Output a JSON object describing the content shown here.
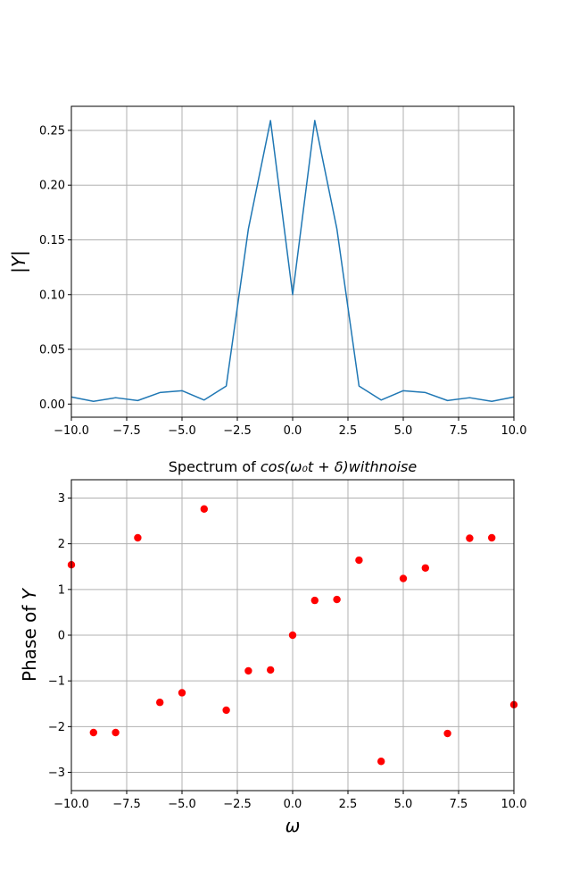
{
  "chart_data": [
    {
      "type": "line",
      "title": "",
      "xlabel": "",
      "ylabel": "|Y|",
      "xlim": [
        -10,
        10
      ],
      "ylim": [
        -0.012,
        0.272
      ],
      "grid": true,
      "color": "#1f77b4",
      "x_ticks": [
        -10,
        -7.5,
        -5,
        -2.5,
        0,
        2.5,
        5,
        7.5,
        10
      ],
      "x_tick_labels": [
        "−10.0",
        "−7.5",
        "−5.0",
        "−2.5",
        "0.0",
        "2.5",
        "5.0",
        "7.5",
        "10.0"
      ],
      "y_ticks": [
        0,
        0.05,
        0.1,
        0.15,
        0.2,
        0.25
      ],
      "y_tick_labels": [
        "0.00",
        "0.05",
        "0.10",
        "0.15",
        "0.20",
        "0.25"
      ],
      "x": [
        -10,
        -9,
        -8,
        -7,
        -6,
        -5,
        -4,
        -3,
        -2,
        -1,
        0,
        1,
        2,
        3,
        4,
        5,
        6,
        7,
        8,
        9,
        10
      ],
      "y": [
        0.0065,
        0.0025,
        0.0058,
        0.0032,
        0.0105,
        0.0122,
        0.0037,
        0.0165,
        0.16,
        0.259,
        0.1,
        0.259,
        0.16,
        0.0165,
        0.0037,
        0.0122,
        0.0105,
        0.0032,
        0.0058,
        0.0025,
        0.0065
      ]
    },
    {
      "type": "scatter",
      "title_prefix": "Spectrum of ",
      "title_math": "cos(ω₀t + δ)withnoise",
      "xlabel": "ω",
      "ylabel_text": "Phase of ",
      "ylabel_var": "Y",
      "xlim": [
        -10,
        10
      ],
      "ylim": [
        -3.4,
        3.4
      ],
      "grid": true,
      "color": "#ff0000",
      "x_ticks": [
        -10,
        -7.5,
        -5,
        -2.5,
        0,
        2.5,
        5,
        7.5,
        10
      ],
      "x_tick_labels": [
        "−10.0",
        "−7.5",
        "−5.0",
        "−2.5",
        "0.0",
        "2.5",
        "5.0",
        "7.5",
        "10.0"
      ],
      "y_ticks": [
        -3,
        -2,
        -1,
        0,
        1,
        2,
        3
      ],
      "y_tick_labels": [
        "−3",
        "−2",
        "−1",
        "0",
        "1",
        "2",
        "3"
      ],
      "x": [
        -10,
        -9,
        -8,
        -7,
        -6,
        -5,
        -4,
        -3,
        -2,
        -1,
        0,
        1,
        2,
        3,
        4,
        5,
        6,
        7,
        8,
        9,
        10
      ],
      "y": [
        1.54,
        -2.13,
        -2.13,
        2.13,
        -1.47,
        -1.26,
        2.76,
        -1.64,
        -0.78,
        -0.76,
        0.0,
        0.76,
        0.78,
        1.64,
        -2.76,
        1.24,
        1.47,
        -2.15,
        2.12,
        2.13,
        -1.52
      ]
    }
  ]
}
